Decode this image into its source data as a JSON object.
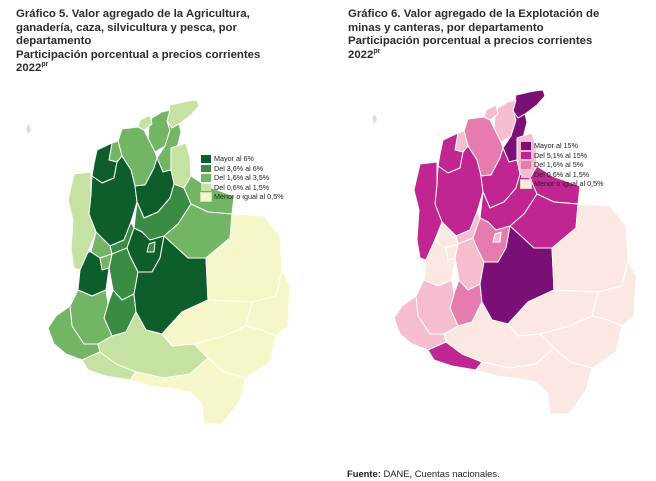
{
  "left": {
    "title_lines": [
      "Gráfico 5. Valor agregado de la Agricultura,",
      "ganadería, caza, silvicultura y pesca, por",
      "departamento"
    ],
    "subtitle": "Participación porcentual a precios corrientes",
    "year": "2022",
    "year_sup": "pr",
    "legend": [
      {
        "label": "Mayor al 6%",
        "color": "#0e5e2c"
      },
      {
        "label": "Del 3,6% al 6%",
        "color": "#3a8c43"
      },
      {
        "label": "Del 1,6% al 3,5%",
        "color": "#72b665"
      },
      {
        "label": "Del 0,6% al 1,5%",
        "color": "#c5e2a2"
      },
      {
        "label": "Menor o igual al 0,5%",
        "color": "#f5f7c9"
      }
    ]
  },
  "right": {
    "title_lines": [
      "Gráfico 6. Valor agregado de la Explotación de",
      "minas y canteras, por departamento"
    ],
    "subtitle": "Participación porcentual a precios corrientes",
    "year": "2022",
    "year_sup": "pr",
    "legend": [
      {
        "label": "Mayor al 15%",
        "color": "#7a0f75"
      },
      {
        "label": "Del 5,1% al 15%",
        "color": "#c02591"
      },
      {
        "label": "Del 1,6% al 5%",
        "color": "#e67cae"
      },
      {
        "label": "Del 0,6% al 1,5%",
        "color": "#f5bdcd"
      },
      {
        "label": "Menor o igual al 0,5%",
        "color": "#fbe8e3"
      }
    ]
  },
  "source": {
    "label": "Fuente:",
    "text": " DANE, Cuentas nacionales."
  },
  "map_classes": {
    "left": {
      "la-guajira": 3,
      "magdalena": 2,
      "atlantico": 3,
      "cesar": 2,
      "bolivar": 2,
      "sucre": 2,
      "cordoba": 0,
      "antioquia": 0,
      "norte-santander": 3,
      "santander": 0,
      "boyaca": 1,
      "arauca": 2,
      "choco": 3,
      "caldas": 1,
      "risaralda": 2,
      "cundinamarca": 0,
      "tolima": 1,
      "valle": 0,
      "quindio": 2,
      "huila": 1,
      "cauca": 2,
      "narino": 2,
      "casanare": 2,
      "meta": 0,
      "vichada": 4,
      "guainia": 4,
      "guaviare": 4,
      "vaupes": 4,
      "caqueta": 3,
      "putumayo": 3,
      "amazonas": 4,
      "bogota": 1
    },
    "right": {
      "la-guajira": 0,
      "magdalena": 3,
      "atlantico": 3,
      "cesar": 0,
      "bolivar": 2,
      "sucre": 3,
      "cordoba": 1,
      "antioquia": 1,
      "norte-santander": 3,
      "santander": 1,
      "boyaca": 1,
      "arauca": 1,
      "choco": 1,
      "caldas": 3,
      "risaralda": 4,
      "cundinamarca": 2,
      "tolima": 3,
      "valle": 4,
      "quindio": 4,
      "huila": 2,
      "cauca": 3,
      "narino": 3,
      "casanare": 1,
      "meta": 0,
      "vichada": 4,
      "guainia": 4,
      "guaviare": 4,
      "vaupes": 4,
      "caqueta": 4,
      "putumayo": 1,
      "amazonas": 4,
      "bogota": 3
    }
  }
}
